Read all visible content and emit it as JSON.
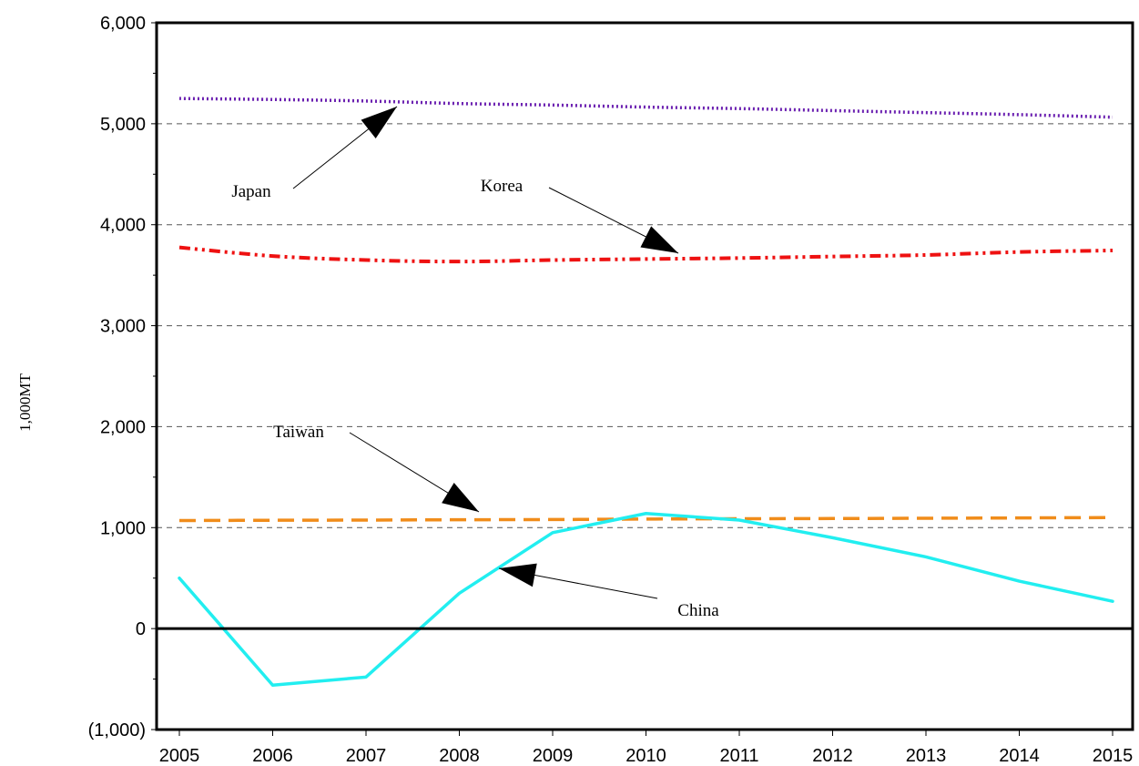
{
  "chart_data": {
    "type": "line",
    "title": "",
    "xlabel": "",
    "ylabel": "1,000MT",
    "x": [
      2005,
      2006,
      2007,
      2008,
      2009,
      2010,
      2011,
      2012,
      2013,
      2014,
      2015
    ],
    "ylim": [
      -1000,
      6000
    ],
    "y_ticks": [
      -1000,
      0,
      1000,
      2000,
      3000,
      4000,
      5000,
      6000
    ],
    "y_tick_labels": [
      "(1,000)",
      "0",
      "1,000",
      "2,000",
      "3,000",
      "4,000",
      "5,000",
      "6,000"
    ],
    "x_tick_labels": [
      "2005",
      "2006",
      "2007",
      "2008",
      "2009",
      "2010",
      "2011",
      "2012",
      "2013",
      "2014",
      "2015"
    ],
    "grid": "horizontal dashed",
    "legend": "none (arrow annotations)",
    "series": [
      {
        "name": "Japan",
        "color": "#6a1fb0",
        "style": "dotted",
        "values": [
          5250,
          5240,
          5225,
          5200,
          5185,
          5165,
          5150,
          5130,
          5110,
          5090,
          5065
        ]
      },
      {
        "name": "Korea",
        "color": "#ee1111",
        "style": "dash-dot-dot",
        "values": [
          3775,
          3690,
          3650,
          3635,
          3650,
          3660,
          3670,
          3685,
          3700,
          3730,
          3745
        ]
      },
      {
        "name": "Taiwan",
        "color": "#f08c1a",
        "style": "dashed",
        "values": [
          1070,
          1073,
          1075,
          1078,
          1080,
          1085,
          1088,
          1090,
          1093,
          1096,
          1100
        ]
      },
      {
        "name": "China",
        "color": "#22eef0",
        "style": "solid",
        "values": [
          500,
          -560,
          -480,
          350,
          950,
          1140,
          1075,
          900,
          710,
          470,
          270
        ]
      }
    ],
    "annotations": [
      {
        "text": "Japan",
        "series": "Japan"
      },
      {
        "text": "Korea",
        "series": "Korea"
      },
      {
        "text": "Taiwan",
        "series": "Taiwan"
      },
      {
        "text": "China",
        "series": "China"
      }
    ]
  }
}
